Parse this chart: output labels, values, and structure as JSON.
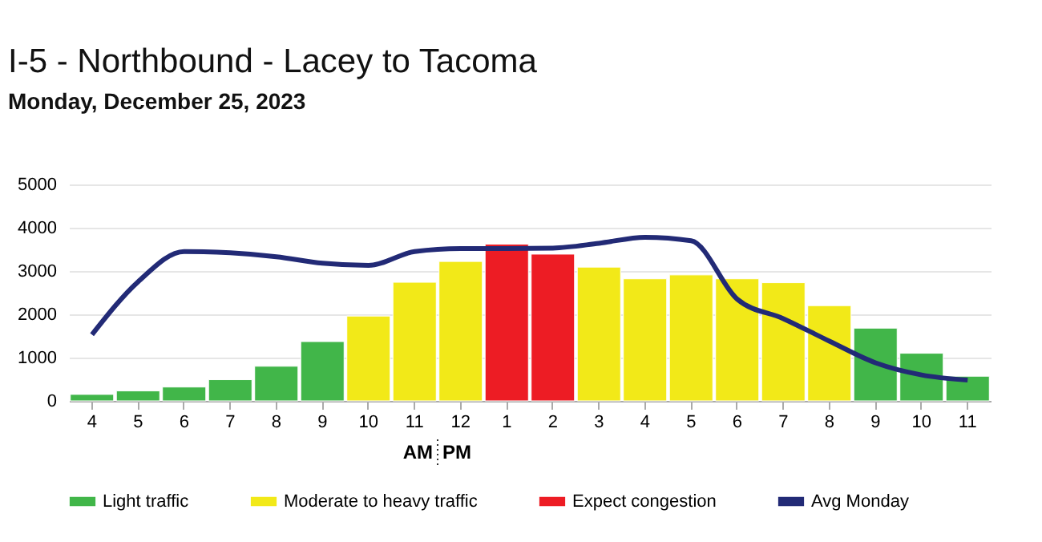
{
  "chart_data": {
    "type": "bar",
    "title": "I-5 - Northbound - Lacey to Tacoma",
    "subtitle": "Monday, December 25, 2023",
    "categories": [
      "4",
      "5",
      "6",
      "7",
      "8",
      "9",
      "10",
      "11",
      "12",
      "1",
      "2",
      "3",
      "4",
      "5",
      "6",
      "7",
      "8",
      "9",
      "10",
      "11"
    ],
    "series": [
      {
        "name": "Light traffic",
        "color": "#41b649",
        "values": [
          150,
          230,
          320,
          490,
          800,
          1370,
          null,
          null,
          null,
          null,
          null,
          null,
          null,
          null,
          null,
          null,
          null,
          1680,
          1100,
          570
        ]
      },
      {
        "name": "Moderate to heavy traffic",
        "color": "#f2e918",
        "values": [
          null,
          null,
          null,
          null,
          null,
          null,
          1960,
          2740,
          3220,
          null,
          null,
          3090,
          2820,
          2910,
          2820,
          2730,
          2200,
          null,
          null,
          null
        ]
      },
      {
        "name": "Expect congestion",
        "color": "#ed1c24",
        "values": [
          null,
          null,
          null,
          null,
          null,
          null,
          null,
          null,
          null,
          3620,
          3390,
          null,
          null,
          null,
          null,
          null,
          null,
          null,
          null,
          null
        ]
      },
      {
        "name": "Avg Monday",
        "type": "line",
        "color": "#222a76",
        "values": [
          1530,
          2750,
          3450,
          3420,
          3330,
          3180,
          3130,
          3450,
          3520,
          3520,
          3530,
          3640,
          3780,
          3700,
          2350,
          1900,
          1380,
          880,
          600,
          480
        ]
      }
    ],
    "annotations": [
      "AM",
      "PM"
    ],
    "ylim": [
      0,
      5000
    ],
    "yticks": [
      0,
      1000,
      2000,
      3000,
      4000,
      5000
    ],
    "grid": "y",
    "legend": "bottom"
  }
}
